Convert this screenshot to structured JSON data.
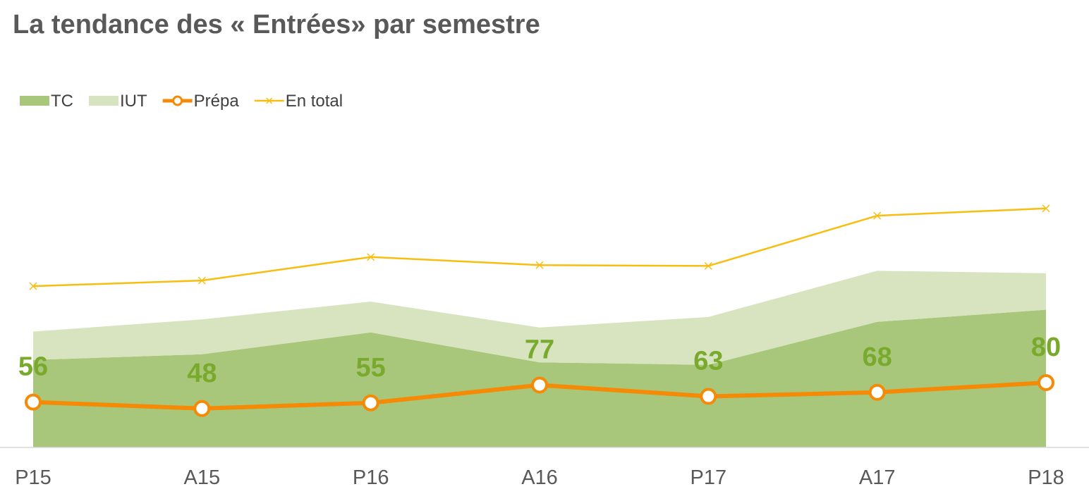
{
  "chart_data": {
    "type": "line",
    "title": "La tendance des « Entrées» par semestre",
    "xlabel": "",
    "ylabel": "",
    "categories": [
      "P15",
      "A15",
      "P16",
      "A16",
      "P17",
      "A17",
      "P18"
    ],
    "ylim": [
      0,
      500
    ],
    "grid": false,
    "legend_position": "top-left",
    "series": [
      {
        "name": "TC",
        "kind": "area",
        "values": [
          108,
          115,
          142,
          105,
          102,
          155,
          170
        ],
        "color": "#a9c77b"
      },
      {
        "name": "IUT",
        "kind": "area",
        "values": [
          35,
          43,
          38,
          43,
          59,
          63,
          45
        ],
        "color": "#d8e4c0"
      },
      {
        "name": "Prépa",
        "kind": "line-markers",
        "values": [
          56,
          48,
          55,
          77,
          63,
          68,
          80
        ],
        "color": "#f58a07",
        "data_labels": [
          "56",
          "48",
          "55",
          "77",
          "63",
          "68",
          "80"
        ],
        "label_color": "#7aaa2d"
      },
      {
        "name": "En total",
        "kind": "line",
        "values": [
          199,
          206,
          235,
          225,
          224,
          286,
          295
        ],
        "color": "#f7be10"
      }
    ]
  }
}
